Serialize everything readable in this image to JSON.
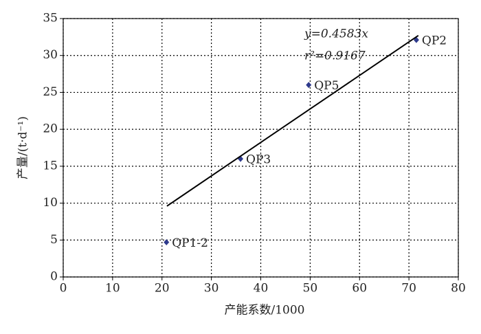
{
  "chart_data": {
    "type": "scatter",
    "x_label": "产能系数/1000",
    "y_label": "产量/(t·d⁻¹)",
    "annotations": [
      "y=0.4583x",
      "r²=0.9167"
    ],
    "series": [
      {
        "mode": "points",
        "color": "#2e3a8c",
        "labels": [
          "QP1-2",
          "QP3",
          "QP5",
          "QP2"
        ],
        "x": [
          20.9,
          35.9,
          49.7,
          71.5
        ],
        "values": [
          4.7,
          16.0,
          26.0,
          32.1
        ]
      },
      {
        "mode": "line",
        "color": "#000000",
        "x": [
          21.0,
          71.9
        ],
        "values": [
          9.6,
          32.7
        ]
      }
    ],
    "xlim": [
      0,
      80
    ],
    "xticks": [
      0,
      10,
      20,
      30,
      40,
      50,
      60,
      70,
      80
    ],
    "ylim": [
      0,
      35
    ],
    "yticks": [
      0,
      5,
      10,
      15,
      20,
      25,
      30,
      35
    ],
    "grid": true
  }
}
